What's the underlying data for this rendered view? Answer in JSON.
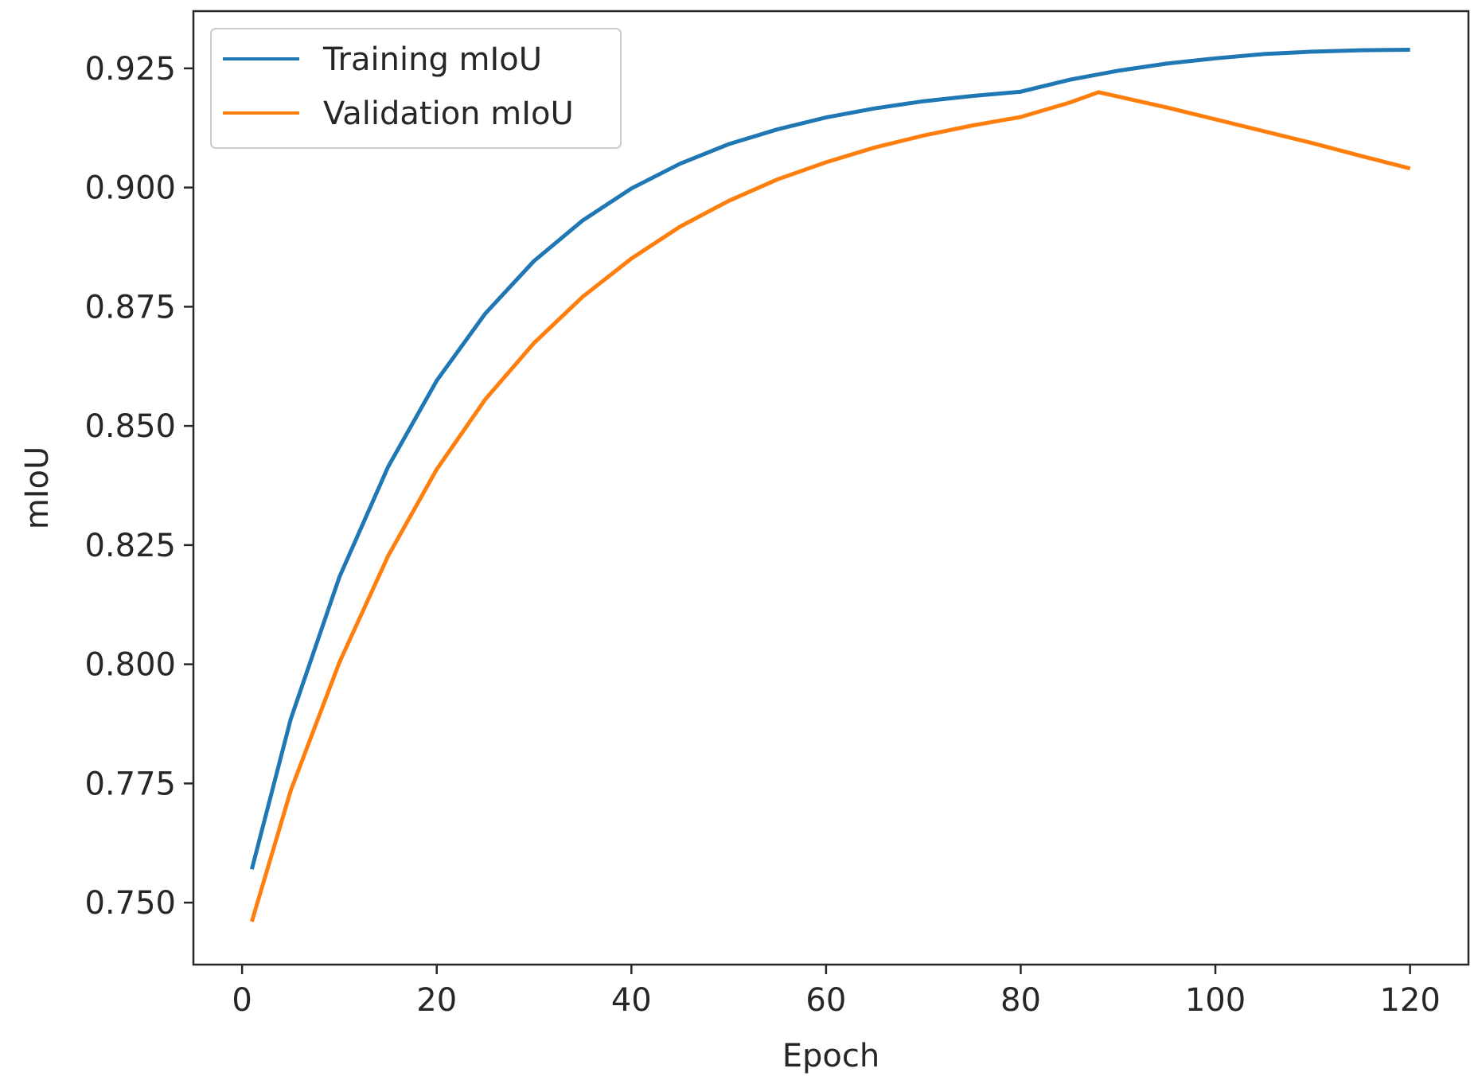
{
  "chart_data": {
    "type": "line",
    "title": "",
    "xlabel": "Epoch",
    "ylabel": "mIoU",
    "xlim": [
      -5,
      126
    ],
    "ylim": [
      0.737,
      0.937
    ],
    "xticks": [
      0,
      20,
      40,
      60,
      80,
      100,
      120
    ],
    "yticks": [
      0.75,
      0.775,
      0.8,
      0.825,
      0.85,
      0.875,
      0.9,
      0.925
    ],
    "xtick_labels": [
      "0",
      "20",
      "40",
      "60",
      "80",
      "100",
      "120"
    ],
    "ytick_labels": [
      "0.750",
      "0.775",
      "0.800",
      "0.825",
      "0.850",
      "0.875",
      "0.900",
      "0.925"
    ],
    "grid": false,
    "legend_position": "top-left",
    "series": [
      {
        "name": "Training mIoU",
        "color": "#1f77b4",
        "x": [
          1,
          5,
          10,
          15,
          20,
          25,
          30,
          35,
          40,
          45,
          50,
          55,
          60,
          65,
          70,
          75,
          80,
          85,
          90,
          95,
          100,
          105,
          110,
          115,
          120
        ],
        "y": [
          0.757,
          0.7885,
          0.8183,
          0.8414,
          0.8595,
          0.8736,
          0.8846,
          0.8931,
          0.8998,
          0.905,
          0.9091,
          0.9122,
          0.9147,
          0.9166,
          0.9181,
          0.9192,
          0.9201,
          0.9226,
          0.9245,
          0.926,
          0.9271,
          0.928,
          0.9285,
          0.9288,
          0.9289
        ]
      },
      {
        "name": "Validation mIoU",
        "color": "#ff7f0e",
        "x": [
          1,
          5,
          10,
          15,
          20,
          25,
          30,
          35,
          40,
          45,
          50,
          55,
          60,
          65,
          70,
          75,
          80,
          85,
          88,
          95,
          100,
          105,
          110,
          115,
          120
        ],
        "y": [
          0.746,
          0.7735,
          0.8004,
          0.8227,
          0.8409,
          0.8556,
          0.8674,
          0.8771,
          0.8851,
          0.8918,
          0.8972,
          0.9017,
          0.9053,
          0.9084,
          0.9109,
          0.913,
          0.9148,
          0.9178,
          0.92,
          0.9168,
          0.9143,
          0.9118,
          0.9093,
          0.9066,
          0.904
        ]
      }
    ]
  }
}
